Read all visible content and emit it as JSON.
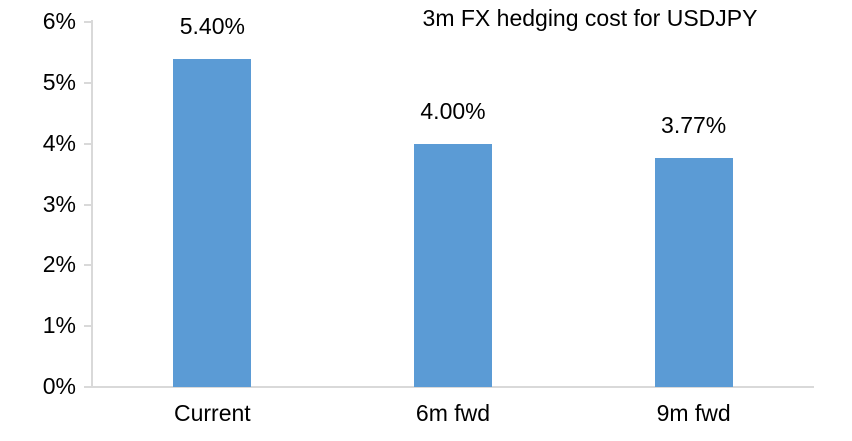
{
  "chart_data": {
    "type": "bar",
    "title": "3m FX hedging cost for USDJPY",
    "categories": [
      "Current",
      "6m fwd",
      "9m fwd"
    ],
    "values": [
      5.4,
      4.0,
      3.77
    ],
    "data_labels": [
      "5.40%",
      "4.00%",
      "3.77%"
    ],
    "xlabel": "",
    "ylabel": "",
    "ylim": [
      0,
      6
    ],
    "y_ticks": [
      {
        "value": 0,
        "label": "0%"
      },
      {
        "value": 1,
        "label": "1%"
      },
      {
        "value": 2,
        "label": "2%"
      },
      {
        "value": 3,
        "label": "3%"
      },
      {
        "value": 4,
        "label": "4%"
      },
      {
        "value": 5,
        "label": "5%"
      },
      {
        "value": 6,
        "label": "6%"
      }
    ],
    "grid": "off",
    "legend_position": "none",
    "colors": {
      "bar_fill": "#5B9BD5",
      "axis_line": "#D9D9D9",
      "text": "#000000",
      "background": "#FFFFFF"
    }
  }
}
